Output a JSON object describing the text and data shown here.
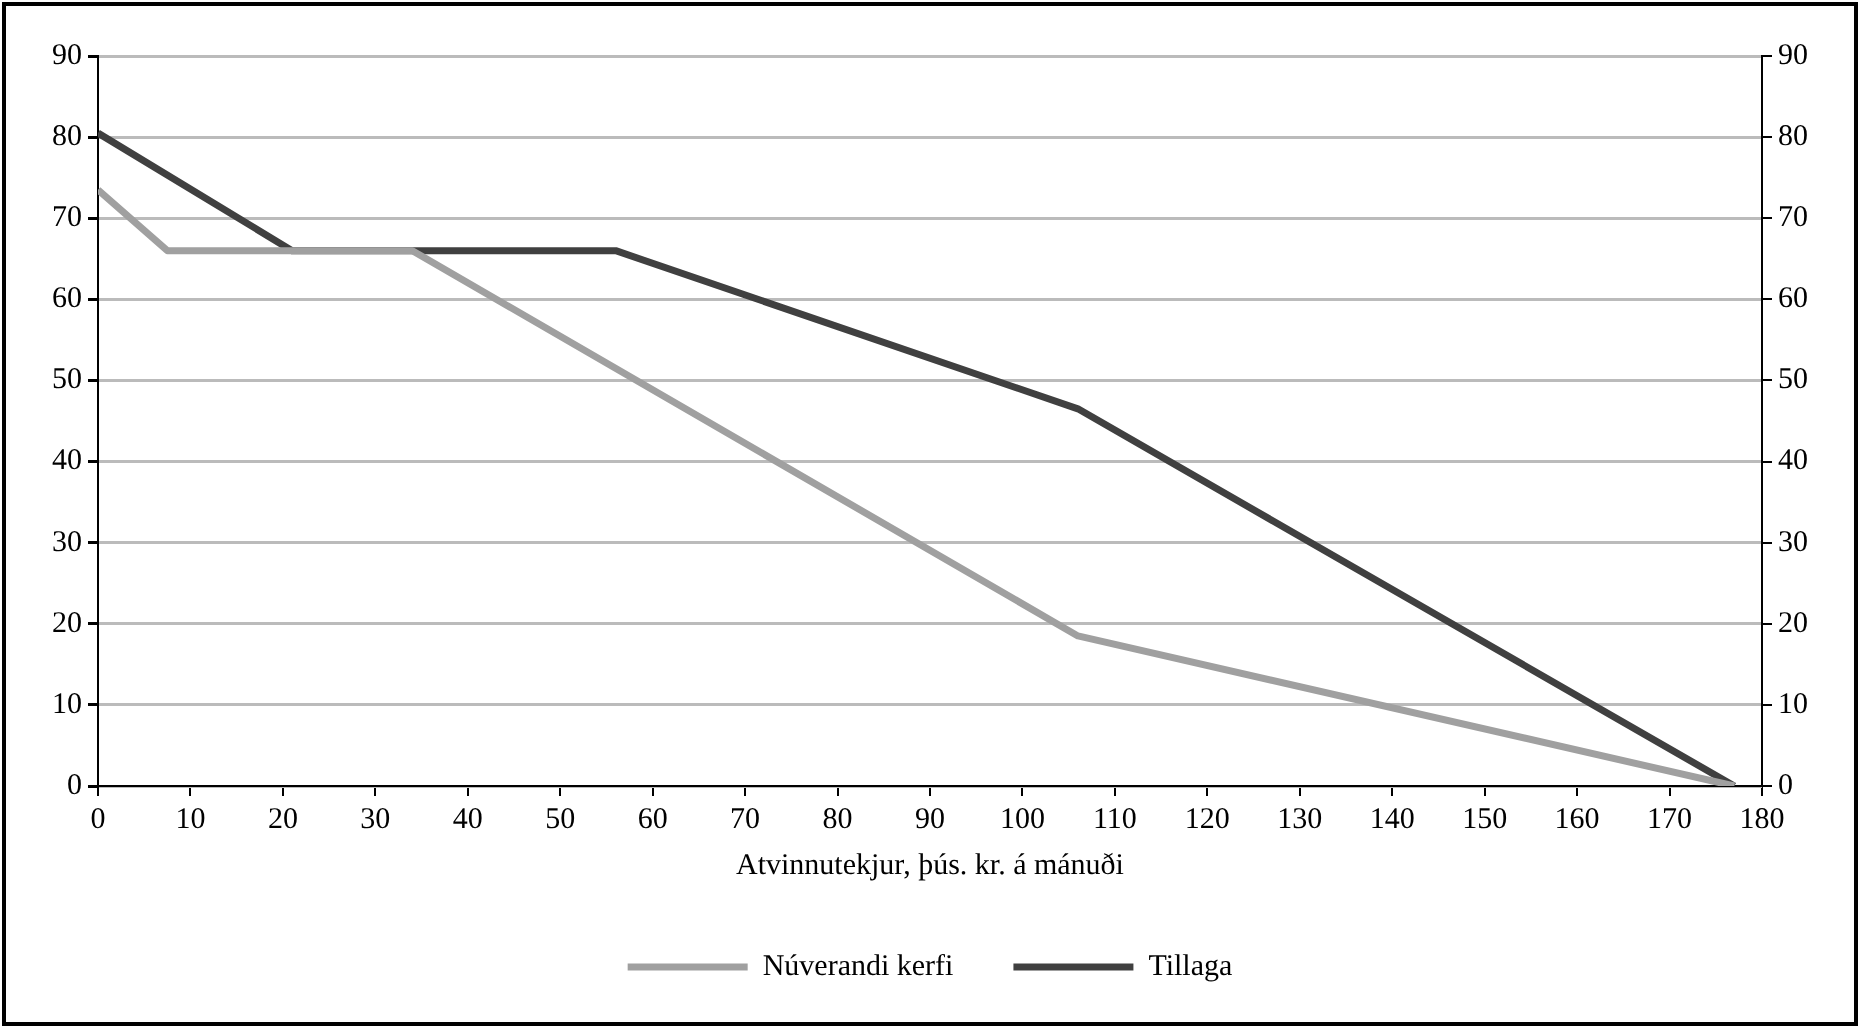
{
  "chart_data": {
    "type": "line",
    "xlabel": "Atvinnutekjur, þús. kr. á mánuði",
    "xlim": [
      0,
      180
    ],
    "xticks": [
      0,
      10,
      20,
      30,
      40,
      50,
      60,
      70,
      80,
      90,
      100,
      110,
      120,
      130,
      140,
      150,
      160,
      170,
      180
    ],
    "ylim": [
      0,
      90
    ],
    "yticks": [
      0,
      10,
      20,
      30,
      40,
      50,
      60,
      70,
      80,
      90
    ],
    "y2lim": [
      0,
      90
    ],
    "y2ticks": [
      0,
      10,
      20,
      30,
      40,
      50,
      60,
      70,
      80,
      90
    ],
    "grid": "y",
    "legend": "bottom",
    "marker": "none",
    "line_style": "solid",
    "series": [
      {
        "name": "Núverandi kerfi",
        "color": "#a0a0a0",
        "x": [
          0,
          7.5,
          34,
          106,
          177
        ],
        "values": [
          73.5,
          66,
          66,
          18.5,
          0
        ]
      },
      {
        "name": "Tillaga",
        "color": "#404040",
        "x": [
          0,
          21,
          56,
          106,
          177
        ],
        "values": [
          80.5,
          66,
          66,
          46.5,
          0
        ]
      }
    ]
  }
}
